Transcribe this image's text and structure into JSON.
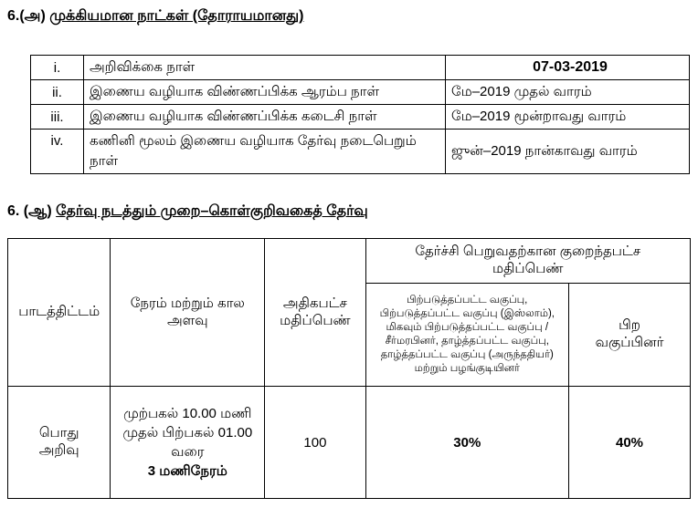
{
  "section_a": {
    "number": "6.(அ)",
    "title": "முக்கியமான நாட்கள் (தோராயமானது)",
    "rows": [
      {
        "num": "i.",
        "label": "அறிவிக்கை நாள்",
        "value": "07-03-2019"
      },
      {
        "num": "ii.",
        "label": "இணைய வழியாக விண்ணப்பிக்க ஆரம்ப நாள்",
        "value": "மே–2019 முதல் வாரம்"
      },
      {
        "num": "iii.",
        "label": "இணைய வழியாக விண்ணப்பிக்க கடைசி நாள்",
        "value": "மே–2019 மூன்றாவது வாரம்"
      },
      {
        "num": "iv.",
        "label": "கணினி மூலம் இணைய வழியாக தேர்வு நடைபெறும் நாள்",
        "value": "ஜுன்–2019 நான்காவது வாரம்"
      }
    ]
  },
  "section_b": {
    "number": "6. (ஆ)",
    "title": "தேர்வு நடத்தும் முறை–கொள்குறிவகைத் தேர்வு",
    "headers": {
      "subject": "பாடத்திட்டம்",
      "duration": "நேரம் மற்றும் கால அளவு",
      "max_marks": "அதிகபட்ச மதிப்பெண்",
      "min_marks": "தேர்ச்சி பெறுவதற்கான குறைந்தபட்ச மதிப்பெண்",
      "reserved": "பிற்படுத்தப்பட்ட வகுப்பு, பிற்படுத்தப்பட்ட வகுப்பு (இஸ்லாம்), மிகவும் பிற்படுத்தப்பட்ட வகுப்பு / சீர்மரபினர், தாழ்த்தப்பட்ட வகுப்பு, தாழ்த்தப்பட்ட வகுப்பு (அருந்ததியர்) மற்றும் பழங்குடியினர்",
      "others": "பிற வகுப்பினர்"
    },
    "row": {
      "subject": "பொது அறிவு",
      "duration": "முற்பகல் 10.00 மணி முதல் பிற்பகல் 01.00 வரை",
      "duration_total": "3 மணிநேரம்",
      "max_marks": "100",
      "reserved_min": "30%",
      "others_min": "40%"
    }
  }
}
